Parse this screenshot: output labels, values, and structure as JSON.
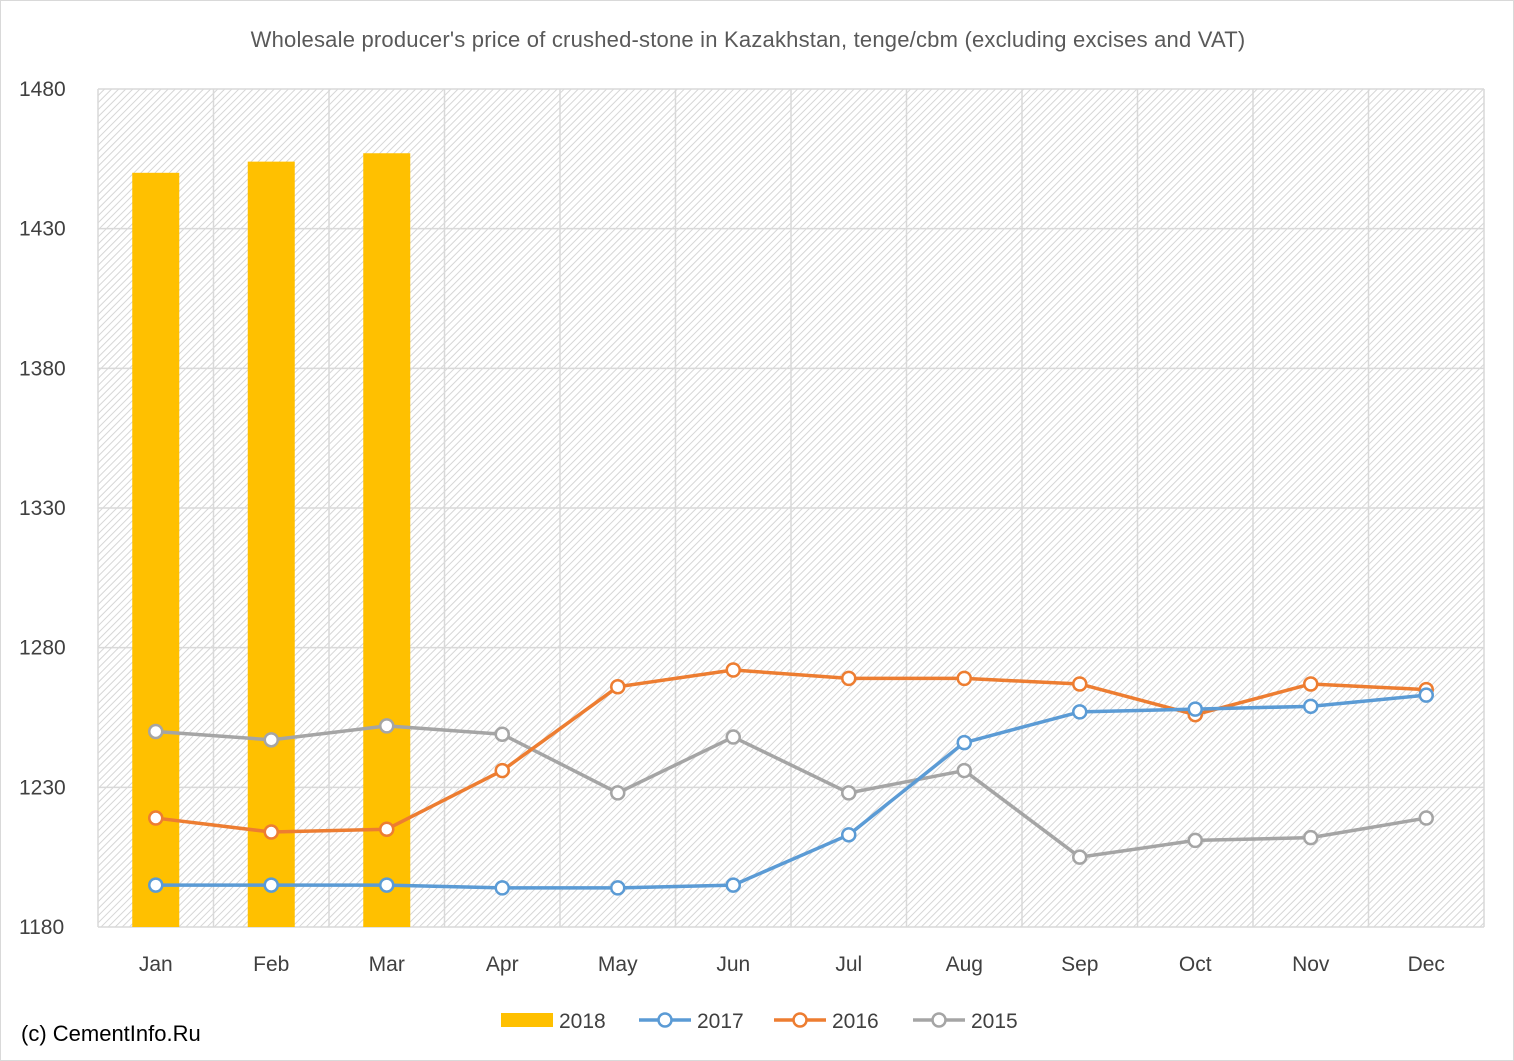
{
  "chart_data": {
    "type": "bar+line",
    "title": "Wholesale producer's price of crushed-stone in Kazakhstan, tenge/cbm (excluding excises and VAT)",
    "categories": [
      "Jan",
      "Feb",
      "Mar",
      "Apr",
      "May",
      "Jun",
      "Jul",
      "Aug",
      "Sep",
      "Oct",
      "Nov",
      "Dec"
    ],
    "ylim": [
      1180,
      1480
    ],
    "yticks": [
      "1180",
      "1230",
      "1280",
      "1330",
      "1380",
      "1430",
      "1480"
    ],
    "grid": true,
    "legend_position": "bottom",
    "series": [
      {
        "name": "2018",
        "kind": "bar",
        "color": "#FFC000",
        "values": [
          1450,
          1454,
          1457,
          null,
          null,
          null,
          null,
          null,
          null,
          null,
          null,
          null
        ]
      },
      {
        "name": "2017",
        "kind": "line",
        "color": "#5B9BD5",
        "values": [
          1195,
          1195,
          1195,
          1194,
          1194,
          1195,
          1213,
          1246,
          1257,
          1258,
          1259,
          1263
        ]
      },
      {
        "name": "2016",
        "kind": "line",
        "color": "#ED7D31",
        "values": [
          1219,
          1214,
          1215,
          1236,
          1266,
          1272,
          1269,
          1269,
          1267,
          1256,
          1267,
          1265
        ]
      },
      {
        "name": "2015",
        "kind": "line",
        "color": "#A5A5A5",
        "values": [
          1250,
          1247,
          1252,
          1249,
          1228,
          1248,
          1228,
          1236,
          1205,
          1211,
          1212,
          1219
        ]
      }
    ]
  },
  "footer": {
    "copyright": "(c) CementInfo.Ru"
  }
}
